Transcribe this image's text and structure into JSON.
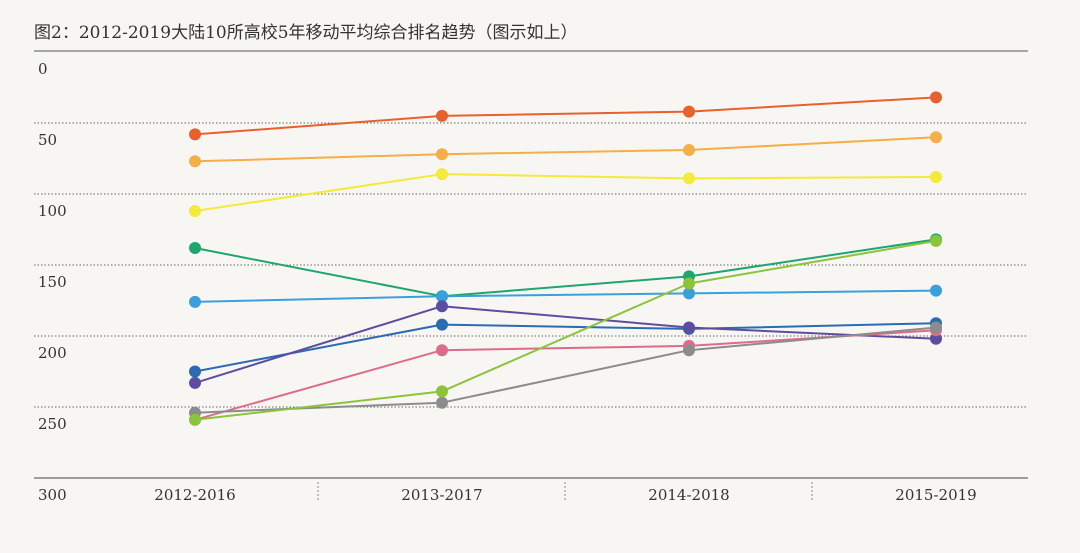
{
  "chart_data": {
    "type": "line",
    "title": "图2：2012-2019大陆10所高校5年移动平均综合排名趋势（图示如上）",
    "xlabel": "",
    "ylabel": "",
    "categories": [
      "2012-2016",
      "2013-2017",
      "2014-2018",
      "2015-2019"
    ],
    "ylim": [
      0,
      300
    ],
    "y_inverted": true,
    "y_ticks": [
      "0",
      "50",
      "100",
      "150",
      "200",
      "250",
      "300"
    ],
    "grid": "dotted horizontal",
    "legend": "none",
    "series": [
      {
        "name": "series-1",
        "color": "#e8602c",
        "values": [
          58,
          45,
          42,
          32
        ]
      },
      {
        "name": "series-2",
        "color": "#f5ae48",
        "values": [
          77,
          72,
          69,
          60
        ]
      },
      {
        "name": "series-3",
        "color": "#f4ea3a",
        "values": [
          112,
          86,
          89,
          88
        ]
      },
      {
        "name": "series-4",
        "color": "#1fa56e",
        "values": [
          138,
          172,
          158,
          132
        ]
      },
      {
        "name": "series-5",
        "color": "#3aa0dc",
        "values": [
          176,
          172,
          170,
          168
        ]
      },
      {
        "name": "series-6",
        "color": "#2a6bb2",
        "values": [
          225,
          192,
          195,
          191
        ]
      },
      {
        "name": "series-7",
        "color": "#5b4ea0",
        "values": [
          233,
          179,
          194,
          202
        ]
      },
      {
        "name": "series-8",
        "color": "#df6b8b",
        "values": [
          259,
          210,
          207,
          196
        ]
      },
      {
        "name": "series-9",
        "color": "#8c8c8c",
        "values": [
          254,
          247,
          210,
          194
        ]
      },
      {
        "name": "series-10",
        "color": "#8bc43a",
        "values": [
          259,
          239,
          163,
          133
        ]
      }
    ]
  }
}
